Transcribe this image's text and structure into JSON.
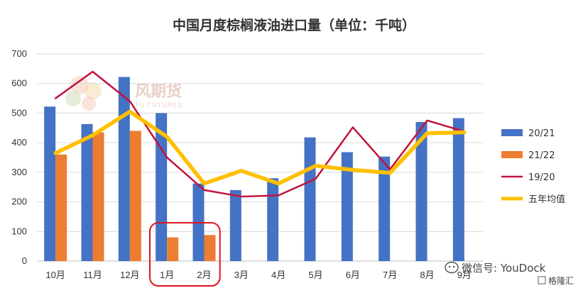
{
  "chart_data": {
    "type": "bar",
    "title": "中国月度棕榈液油进口量（单位：千吨）",
    "categories": [
      "10月",
      "11月",
      "12月",
      "1月",
      "2月",
      "3月",
      "4月",
      "5月",
      "6月",
      "7月",
      "8月",
      "9月"
    ],
    "ylim": [
      0,
      700
    ],
    "yticks": [
      0,
      100,
      200,
      300,
      400,
      500,
      600,
      700
    ],
    "grid": true,
    "legend_position": "right",
    "series": [
      {
        "name": "20/21",
        "kind": "bar",
        "color": "#4472c4",
        "values": [
          522,
          463,
          622,
          500,
          262,
          240,
          280,
          418,
          368,
          353,
          470,
          483
        ]
      },
      {
        "name": "21/22",
        "kind": "bar",
        "color": "#ed7d31",
        "values": [
          360,
          435,
          440,
          80,
          88,
          null,
          null,
          null,
          null,
          null,
          null,
          null
        ]
      },
      {
        "name": "19/20",
        "kind": "line",
        "color": "#c0143c",
        "values": [
          550,
          640,
          540,
          350,
          240,
          218,
          222,
          278,
          452,
          310,
          475,
          438
        ]
      },
      {
        "name": "五年均值",
        "kind": "line",
        "color": "#ffc000",
        "values": [
          365,
          425,
          505,
          420,
          262,
          305,
          262,
          322,
          308,
          298,
          432,
          435
        ]
      }
    ],
    "highlight_categories": [
      "1月",
      "2月"
    ],
    "highlight_color": "#e0141e"
  },
  "watermark": {
    "logo_text": "风期货",
    "logo_sub": "TU FUTURES",
    "wechat_text": "微信号: YouDock",
    "badge_text": "格隆汇"
  }
}
